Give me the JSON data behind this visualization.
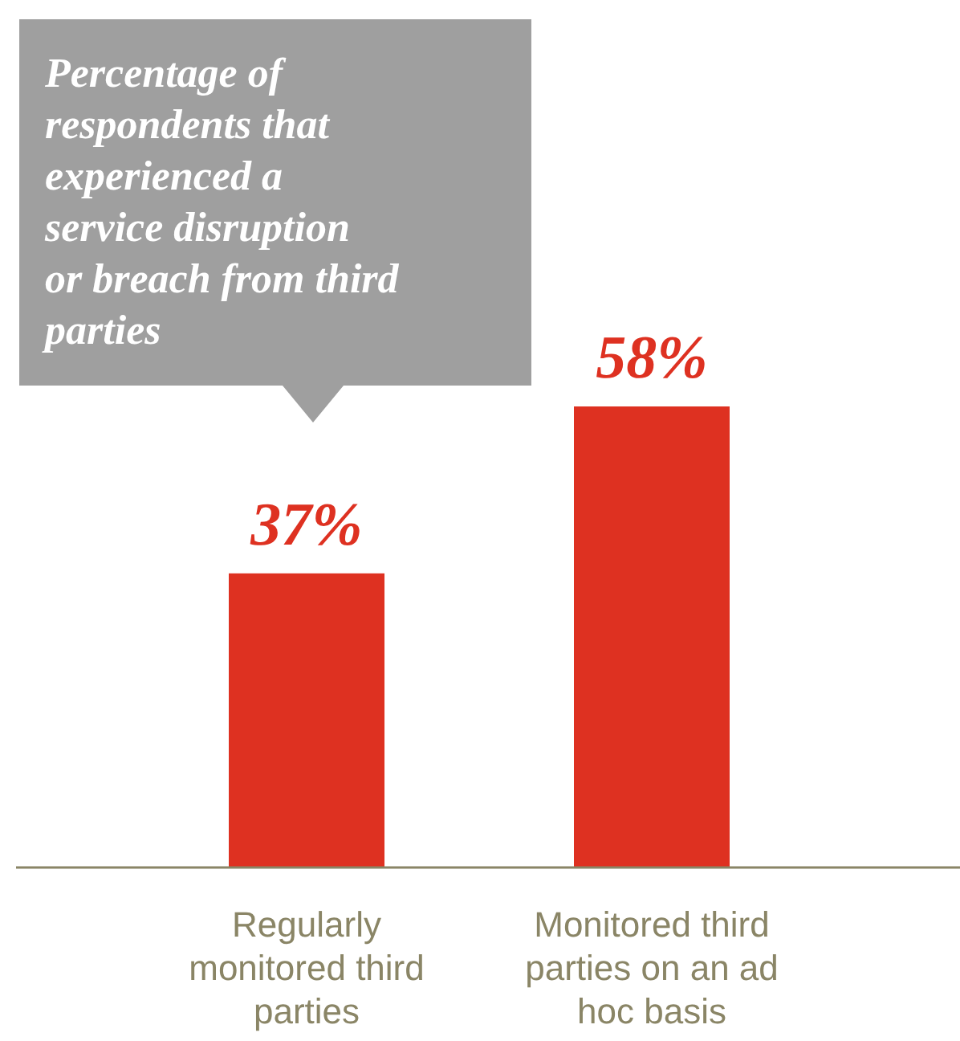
{
  "chart_data": {
    "type": "bar",
    "title": "Percentage of respondents that experienced a service disruption or breach from third parties",
    "categories": [
      "Regularly monitored third parties",
      "Monitored third parties on an ad hoc basis"
    ],
    "values": [
      37,
      58
    ],
    "value_labels": [
      "37%",
      "58%"
    ],
    "color": "#de3121"
  }
}
